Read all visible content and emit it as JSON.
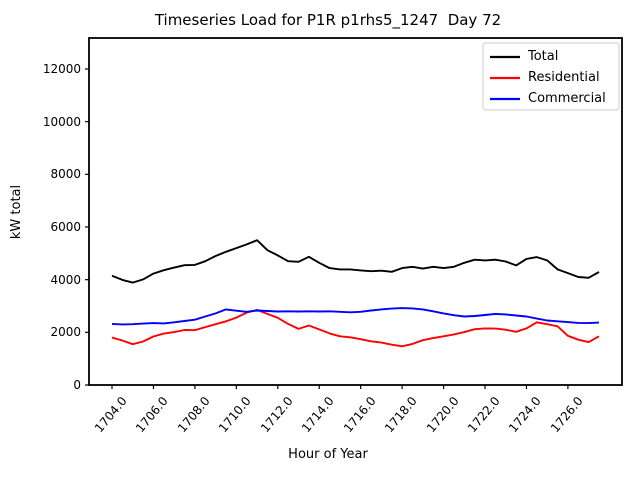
{
  "figure": {
    "title": "Timeseries Load for P1R p1rhs5_1247  Day 72",
    "xlabel": "Hour of Year",
    "ylabel": "kW total"
  },
  "chart_data": {
    "type": "line",
    "title": "Timeseries Load for P1R p1rhs5_1247  Day 72",
    "xlabel": "Hour of Year",
    "ylabel": "kW total",
    "grid": false,
    "legend_position": "upper right",
    "xlim": [
      1702.89,
      1728.61
    ],
    "ylim": [
      0,
      13177
    ],
    "xtick_labels": [
      "1704.0",
      "1706.0",
      "1708.0",
      "1710.0",
      "1712.0",
      "1714.0",
      "1716.0",
      "1718.0",
      "1720.0",
      "1722.0",
      "1724.0",
      "1726.0"
    ],
    "yticks": [
      0,
      2000,
      4000,
      6000,
      8000,
      10000,
      12000
    ],
    "x": [
      1704.0,
      1704.5,
      1705.0,
      1705.5,
      1706.0,
      1706.5,
      1707.0,
      1707.5,
      1708.0,
      1708.5,
      1709.0,
      1709.5,
      1710.0,
      1710.5,
      1711.0,
      1711.5,
      1712.0,
      1712.5,
      1713.0,
      1713.5,
      1714.0,
      1714.5,
      1715.0,
      1715.5,
      1716.0,
      1716.5,
      1717.0,
      1717.5,
      1718.0,
      1718.5,
      1719.0,
      1719.5,
      1720.0,
      1720.5,
      1721.0,
      1721.5,
      1722.0,
      1722.5,
      1723.0,
      1723.5,
      1724.0,
      1724.5,
      1725.0,
      1725.5,
      1726.0,
      1726.5,
      1727.0,
      1727.5
    ],
    "series": [
      {
        "name": "Total",
        "color": "#000000",
        "values": [
          4150,
          3990,
          3890,
          4010,
          4230,
          4360,
          4460,
          4550,
          4560,
          4700,
          4900,
          5060,
          5200,
          5340,
          5500,
          5120,
          4920,
          4700,
          4680,
          4870,
          4640,
          4440,
          4390,
          4390,
          4350,
          4320,
          4340,
          4300,
          4440,
          4490,
          4420,
          4490,
          4440,
          4490,
          4640,
          4760,
          4730,
          4760,
          4690,
          4540,
          4790,
          4855,
          4730,
          4390,
          4250,
          4100,
          4070,
          4290
        ]
      },
      {
        "name": "Residential",
        "color": "#ff0000",
        "values": [
          1800,
          1690,
          1550,
          1650,
          1840,
          1950,
          2010,
          2090,
          2080,
          2200,
          2310,
          2420,
          2560,
          2750,
          2850,
          2700,
          2550,
          2320,
          2130,
          2260,
          2110,
          1960,
          1850,
          1810,
          1740,
          1660,
          1610,
          1530,
          1470,
          1560,
          1700,
          1780,
          1850,
          1920,
          2010,
          2120,
          2150,
          2140,
          2100,
          2020,
          2150,
          2380,
          2310,
          2230,
          1870,
          1720,
          1630,
          1850
        ]
      },
      {
        "name": "Commercial",
        "color": "#0000ff",
        "values": [
          2320,
          2300,
          2310,
          2330,
          2350,
          2340,
          2380,
          2430,
          2480,
          2600,
          2720,
          2870,
          2820,
          2780,
          2830,
          2810,
          2790,
          2800,
          2790,
          2800,
          2790,
          2800,
          2780,
          2760,
          2780,
          2830,
          2870,
          2900,
          2920,
          2910,
          2870,
          2800,
          2720,
          2650,
          2600,
          2620,
          2660,
          2700,
          2680,
          2640,
          2600,
          2520,
          2450,
          2420,
          2390,
          2360,
          2350,
          2370
        ]
      }
    ]
  }
}
